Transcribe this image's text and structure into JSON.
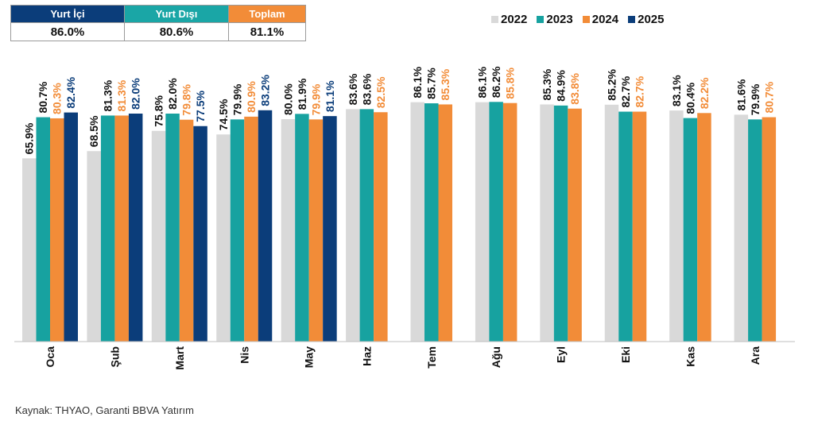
{
  "summary": {
    "headers": [
      "Yurt İçi",
      "Yurt Dışı",
      "Toplam"
    ],
    "values": [
      "86.0%",
      "80.6%",
      "81.1%"
    ],
    "header_colors": [
      "#0b3d7a",
      "#1aa6a6",
      "#f28c38"
    ]
  },
  "chart_data": {
    "type": "bar",
    "categories": [
      "Oca",
      "Şub",
      "Mart",
      "Nis",
      "May",
      "Haz",
      "Tem",
      "Ağu",
      "Eyl",
      "Eki",
      "Kas",
      "Ara"
    ],
    "series": [
      {
        "name": "2022",
        "color": "#d9d9d9",
        "label_color": "#111111",
        "values": [
          65.9,
          68.5,
          75.8,
          74.5,
          80.0,
          83.6,
          86.1,
          86.1,
          85.3,
          85.2,
          83.1,
          81.6
        ]
      },
      {
        "name": "2023",
        "color": "#17a2a0",
        "label_color": "#111111",
        "values": [
          80.7,
          81.3,
          82.0,
          79.9,
          81.9,
          83.6,
          85.7,
          86.2,
          84.9,
          82.7,
          80.4,
          79.9
        ]
      },
      {
        "name": "2024",
        "color": "#f28c38",
        "label_color": "#f28c38",
        "values": [
          80.3,
          81.3,
          79.8,
          80.9,
          79.9,
          82.5,
          85.3,
          85.8,
          83.8,
          82.7,
          82.2,
          80.7
        ]
      },
      {
        "name": "2025",
        "color": "#0b3d7a",
        "label_color": "#0b3d7a",
        "values": [
          82.4,
          82.0,
          77.5,
          83.2,
          81.1,
          null,
          null,
          null,
          null,
          null,
          null,
          null
        ]
      }
    ],
    "label_suffix": "%",
    "ylim": [
      0,
      100
    ],
    "legend_position": "top-right",
    "grid": false
  },
  "source": "Kaynak: THYAO, Garanti BBVA Yatırım"
}
